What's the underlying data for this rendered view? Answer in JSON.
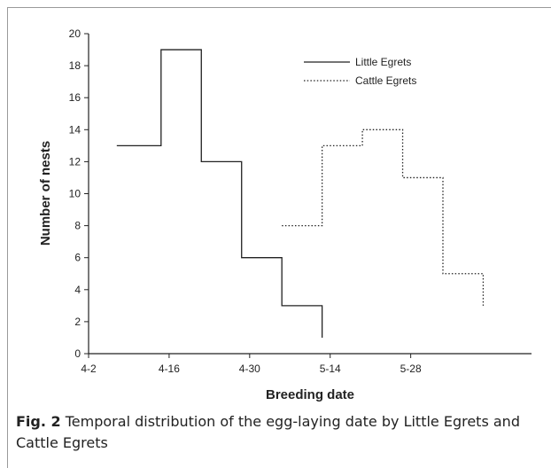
{
  "chart_data": {
    "type": "line",
    "xlabel": "Breeding date",
    "ylabel": "Number of nests",
    "xticks": [
      "4-2",
      "4-16",
      "4-30",
      "5-14",
      "5-28"
    ],
    "xlim": [
      0,
      5.5
    ],
    "ylim": [
      0,
      20
    ],
    "yticks": [
      0,
      2,
      4,
      6,
      8,
      10,
      12,
      14,
      16,
      18,
      20
    ],
    "legend_position": "top-right",
    "series": [
      {
        "name": "Little Egrets",
        "style": "solid",
        "steps": [
          {
            "x0": 0.35,
            "x1": 0.9,
            "y": 13
          },
          {
            "x0": 0.9,
            "x1": 1.4,
            "y": 19
          },
          {
            "x0": 1.4,
            "x1": 1.9,
            "y": 12
          },
          {
            "x0": 1.9,
            "x1": 2.4,
            "y": 6
          },
          {
            "x0": 2.4,
            "x1": 2.9,
            "y": 3
          }
        ],
        "end_y": 1
      },
      {
        "name": "Cattle Egrets",
        "style": "dotted",
        "steps": [
          {
            "x0": 2.4,
            "x1": 2.9,
            "y": 8
          },
          {
            "x0": 2.9,
            "x1": 3.4,
            "y": 13
          },
          {
            "x0": 3.4,
            "x1": 3.9,
            "y": 14
          },
          {
            "x0": 3.9,
            "x1": 4.4,
            "y": 11
          },
          {
            "x0": 4.4,
            "x1": 4.9,
            "y": 5
          }
        ],
        "end_y": 3
      }
    ],
    "colors": {
      "axis": "#222222",
      "line": "#222222"
    }
  },
  "caption": {
    "label": "Fig. 2",
    "text": "Temporal distribution of the egg-laying date by Little Egrets and Cattle Egrets"
  }
}
